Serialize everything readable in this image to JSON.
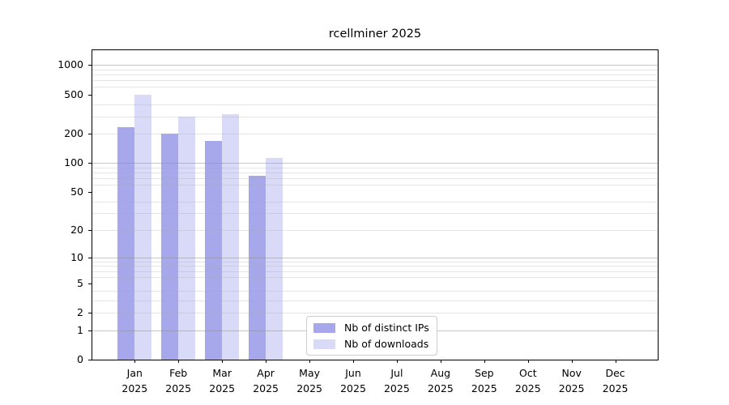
{
  "chart_data": {
    "type": "bar",
    "title": "rcellminer 2025",
    "categories": [
      "Jan",
      "Feb",
      "Mar",
      "Apr",
      "May",
      "Jun",
      "Jul",
      "Aug",
      "Sep",
      "Oct",
      "Nov",
      "Dec"
    ],
    "category_year": "2025",
    "series": [
      {
        "key": "distinct-ips",
        "name": "Nb of distinct IPs",
        "color": "#a7a7ec",
        "values": [
          233,
          198,
          167,
          74,
          null,
          null,
          null,
          null,
          null,
          null,
          null,
          null
        ]
      },
      {
        "key": "downloads",
        "name": "Nb of downloads",
        "color": "#d9daf8",
        "values": [
          500,
          300,
          315,
          112,
          null,
          null,
          null,
          null,
          null,
          null,
          null,
          null
        ]
      }
    ],
    "y_axis": {
      "scale": "log10(1+x)",
      "ylim": [
        0,
        1000
      ],
      "ticks": [
        0,
        1,
        2,
        5,
        10,
        20,
        50,
        100,
        200,
        500,
        1000
      ],
      "major_gridlines": [
        1,
        10,
        100,
        1000
      ],
      "minor_gridlines": [
        2,
        3,
        4,
        6,
        7,
        8,
        9,
        20,
        30,
        40,
        60,
        70,
        80,
        90,
        200,
        300,
        400,
        600,
        700,
        800,
        900
      ],
      "labeled_minor_ticks": [
        2,
        5,
        20,
        50,
        200,
        500
      ]
    },
    "legend": {
      "position": "lower center"
    },
    "colors": {
      "major_grid": "#8e8e8e",
      "minor_grid": "#a8a8a8",
      "axis": "#000000",
      "background": "#ffffff",
      "text": "#000000"
    },
    "grid": true
  }
}
